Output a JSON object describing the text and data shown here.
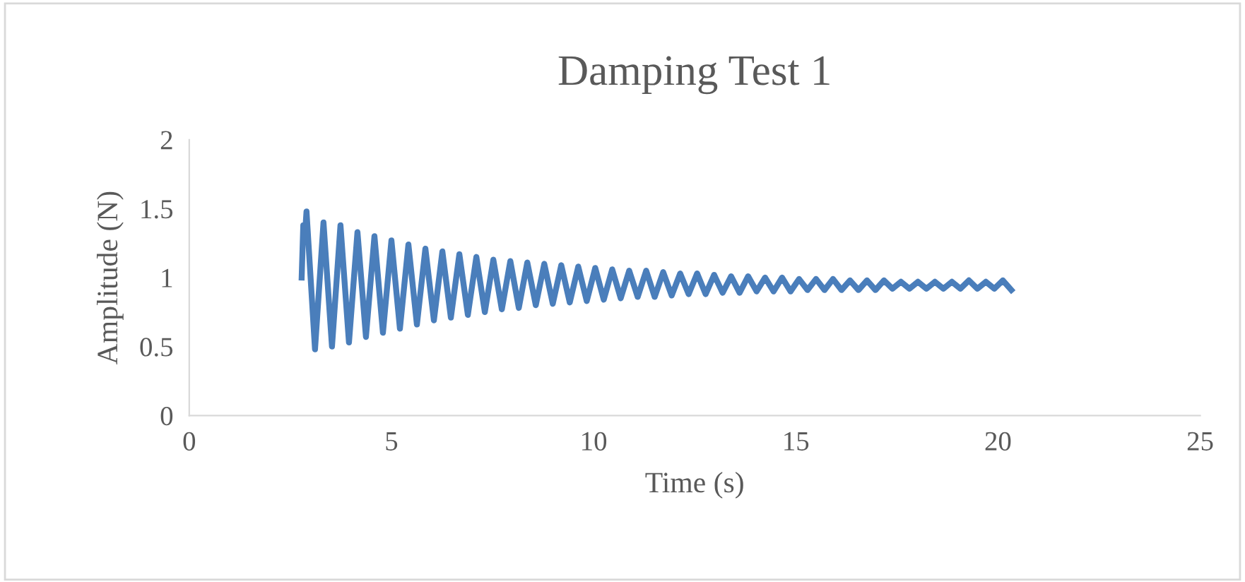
{
  "chart_data": {
    "type": "line",
    "title": "Damping Test 1",
    "xlabel": "Time (s)",
    "ylabel": "Amplitude (N)",
    "xlim": [
      0,
      25
    ],
    "xticks": [
      0,
      5,
      10,
      15,
      20,
      25
    ],
    "ylim": [
      0,
      2
    ],
    "yticks": [
      0,
      {
        "value": 0.5,
        "label": "0.5"
      },
      1,
      {
        "value": 1.5,
        "label": "1.5"
      },
      2
    ],
    "grid": false,
    "legend": false,
    "marker": "none",
    "line_style": "solid",
    "series": [
      {
        "color": "#4a7ebb",
        "x": [
          2.78,
          2.82,
          2.86,
          2.9,
          3.11,
          3.32,
          3.53,
          3.74,
          3.95,
          4.16,
          4.37,
          4.58,
          4.79,
          5.0,
          5.21,
          5.42,
          5.63,
          5.84,
          6.05,
          6.26,
          6.47,
          6.68,
          6.89,
          7.1,
          7.31,
          7.52,
          7.73,
          7.94,
          8.15,
          8.36,
          8.57,
          8.78,
          8.99,
          9.2,
          9.41,
          9.62,
          9.83,
          10.04,
          10.25,
          10.46,
          10.67,
          10.88,
          11.09,
          11.3,
          11.51,
          11.72,
          11.93,
          12.14,
          12.35,
          12.56,
          12.77,
          12.98,
          13.19,
          13.4,
          13.61,
          13.82,
          14.03,
          14.24,
          14.45,
          14.66,
          14.87,
          15.08,
          15.29,
          15.5,
          15.71,
          15.92,
          16.13,
          16.34,
          16.55,
          16.76,
          16.97,
          17.18,
          17.39,
          17.6,
          17.81,
          18.02,
          18.23,
          18.44,
          18.65,
          18.86,
          19.07,
          19.28,
          19.49,
          19.7,
          19.91,
          20.12,
          20.33
        ],
        "values": [
          1.0,
          1.38,
          1.3,
          1.48,
          0.48,
          1.4,
          0.5,
          1.38,
          0.53,
          1.33,
          0.57,
          1.3,
          0.6,
          1.27,
          0.63,
          1.24,
          0.66,
          1.21,
          0.69,
          1.19,
          0.71,
          1.17,
          0.73,
          1.15,
          0.75,
          1.13,
          0.77,
          1.12,
          0.78,
          1.11,
          0.8,
          1.1,
          0.81,
          1.09,
          0.82,
          1.08,
          0.83,
          1.07,
          0.84,
          1.06,
          0.85,
          1.05,
          0.86,
          1.05,
          0.86,
          1.04,
          0.87,
          1.03,
          0.88,
          1.03,
          0.88,
          1.02,
          0.89,
          1.01,
          0.89,
          1.01,
          0.9,
          1.0,
          0.9,
          1.0,
          0.9,
          0.99,
          0.91,
          0.99,
          0.91,
          0.99,
          0.91,
          0.98,
          0.91,
          0.98,
          0.91,
          0.98,
          0.92,
          0.97,
          0.92,
          0.97,
          0.92,
          0.97,
          0.92,
          0.97,
          0.92,
          0.98,
          0.92,
          0.97,
          0.92,
          0.98,
          0.91
        ]
      }
    ]
  }
}
